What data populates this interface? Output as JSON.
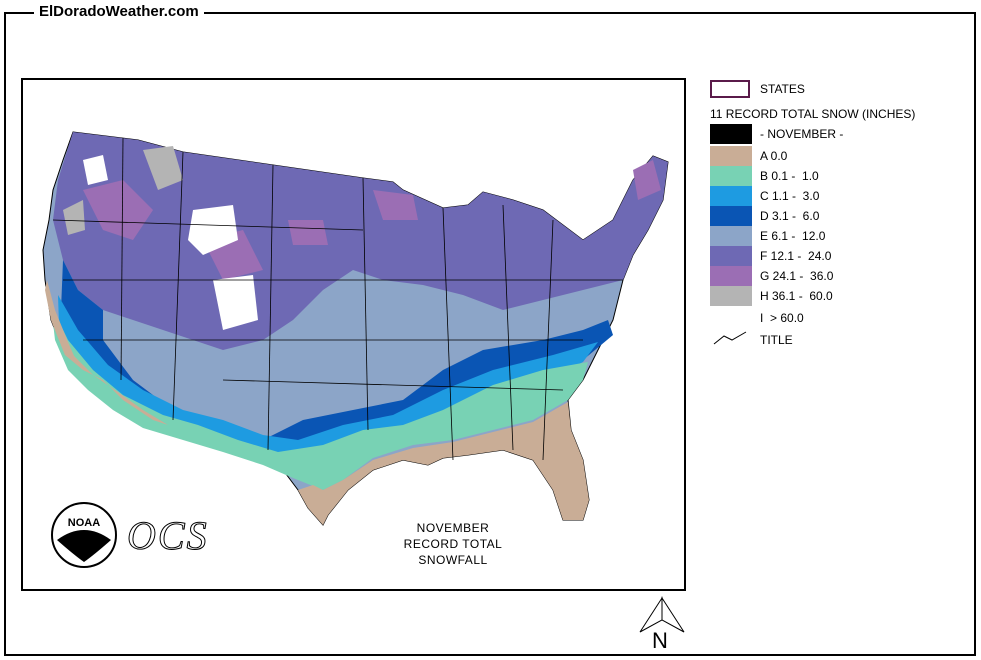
{
  "site": {
    "title": "ElDoradoWeather.com"
  },
  "map": {
    "caption_line1": "NOVEMBER",
    "caption_line2": "RECORD TOTAL SNOWFALL",
    "logo_text": "NOAA",
    "ocs_text": "OCS"
  },
  "legend": {
    "states_label": "STATES",
    "heading": "11 RECORD TOTAL SNOW (INCHES)",
    "items": [
      {
        "label": "- NOVEMBER -",
        "color": "#000000"
      },
      {
        "label": "A 0.0",
        "color": "#c9ad96"
      },
      {
        "label": "B 0.1 -  1.0",
        "color": "#78d2b4"
      },
      {
        "label": "C 1.1 -  3.0",
        "color": "#1e9be1"
      },
      {
        "label": "D 3.1 -  6.0",
        "color": "#0a55b4"
      },
      {
        "label": "E 6.1 -  12.0",
        "color": "#8ca5c8"
      },
      {
        "label": "F 12.1 -  24.0",
        "color": "#6e69b4"
      },
      {
        "label": "G 24.1 -  36.0",
        "color": "#9b6eb4"
      },
      {
        "label": "H 36.1 -  60.0",
        "color": "#b4b4b4"
      },
      {
        "label": "I  > 60.0",
        "color": "#ffffff"
      }
    ],
    "title_label": "TITLE"
  },
  "north": {
    "label": "N"
  }
}
